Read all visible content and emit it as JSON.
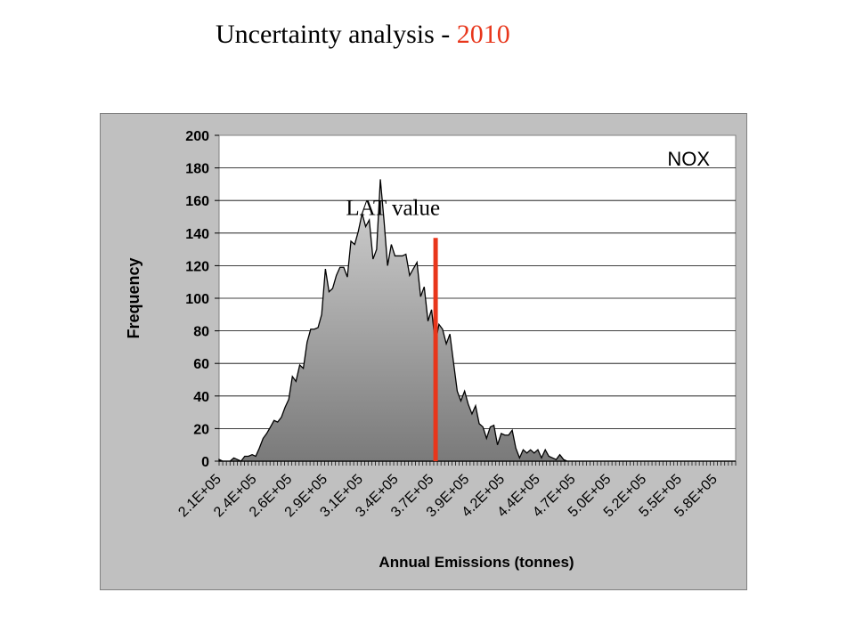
{
  "slide": {
    "title_prefix": "Uncertainty analysis - ",
    "title_year": "2010",
    "accent_color": "#e8361b"
  },
  "chart_data": {
    "type": "area",
    "title": "NOX",
    "xlabel": "Annual Emissions (tonnes)",
    "ylabel": "Frequency",
    "ylim": [
      0,
      200
    ],
    "yticks": [
      0,
      20,
      40,
      60,
      80,
      100,
      120,
      140,
      160,
      180,
      200
    ],
    "x_tick_labels": [
      "2.1E+05",
      "2.4E+05",
      "2.6E+05",
      "2.9E+05",
      "3.1E+05",
      "3.4E+05",
      "3.7E+05",
      "3.9E+05",
      "4.2E+05",
      "4.4E+05",
      "4.7E+05",
      "5.0E+05",
      "5.2E+05",
      "5.5E+05",
      "5.8E+05"
    ],
    "x": [
      210000,
      212600,
      215300,
      217900,
      220600,
      223200,
      225800,
      228500,
      231100,
      233800,
      236400,
      239000,
      241700,
      244300,
      247000,
      249600,
      252200,
      254900,
      257500,
      260200,
      262800,
      265400,
      268100,
      270700,
      273400,
      276000,
      278600,
      281300,
      283900,
      286600,
      289200,
      291800,
      294500,
      297100,
      299800,
      302400,
      305000,
      307700,
      310300,
      313000,
      315600,
      318200,
      320900,
      323500,
      326200,
      328800,
      331400,
      334100,
      336700,
      339400,
      342000,
      344600,
      347300,
      349900,
      352600,
      355200,
      357800,
      360500,
      363100,
      365800,
      368400,
      371000,
      373700,
      376300,
      379000,
      381600,
      384200,
      386900,
      389500,
      392200,
      394800,
      397400,
      400100,
      402700,
      405400,
      408000,
      410600,
      413300,
      415900,
      418600,
      421200,
      423800,
      426500,
      429100,
      431800,
      434400,
      437000,
      439700,
      442300,
      445000,
      447600,
      450200,
      452900,
      455500,
      458200,
      460800,
      463400,
      466100,
      468700,
      471400,
      474000,
      476600,
      479300,
      481900,
      484600,
      487200,
      489800,
      492500,
      495100,
      497800,
      500400,
      503000,
      505700,
      508300,
      511000,
      513600,
      516200,
      518900,
      521500,
      524200,
      526800,
      529400,
      532100,
      534700,
      537400,
      540000,
      542600,
      545300,
      547900,
      550600,
      553200,
      555800,
      558500,
      561100,
      563800,
      566400,
      569000,
      571700,
      574300,
      577000,
      579600,
      582200
    ],
    "frequency": [
      1,
      0,
      0,
      0,
      2,
      1,
      0,
      3,
      3,
      4,
      3,
      8,
      14,
      17,
      21,
      25,
      24,
      27,
      33,
      38,
      52,
      49,
      59,
      57,
      73,
      81,
      81,
      82,
      90,
      118,
      104,
      106,
      114,
      119,
      119,
      113,
      135,
      133,
      141,
      152,
      144,
      148,
      124,
      130,
      173,
      148,
      120,
      133,
      126,
      126,
      126,
      127,
      114,
      118,
      122,
      101,
      107,
      86,
      93,
      72,
      84,
      81,
      72,
      78,
      60,
      43,
      37,
      43,
      35,
      29,
      34,
      23,
      21,
      14,
      21,
      22,
      10,
      17,
      16,
      16,
      19,
      8,
      2,
      7,
      5,
      7,
      5,
      7,
      2,
      7,
      3,
      2,
      1,
      4,
      1,
      0,
      0,
      0,
      0,
      0,
      0,
      0,
      0,
      0,
      0,
      0,
      0,
      0,
      0,
      0,
      0,
      0,
      0,
      0,
      0,
      0,
      0,
      0,
      0,
      0,
      0,
      0,
      0,
      0,
      0,
      0,
      0,
      0,
      0,
      0,
      0,
      0,
      0,
      0,
      0,
      0,
      0,
      0,
      0,
      0,
      0,
      0
    ],
    "annotation": {
      "label": "LAT value",
      "x": 366000,
      "y_range": [
        0,
        137
      ],
      "color": "#e8361b"
    },
    "fill_gradient": [
      "#d4d4d4",
      "#7a7a7a"
    ],
    "grid": true,
    "legend": "none"
  }
}
